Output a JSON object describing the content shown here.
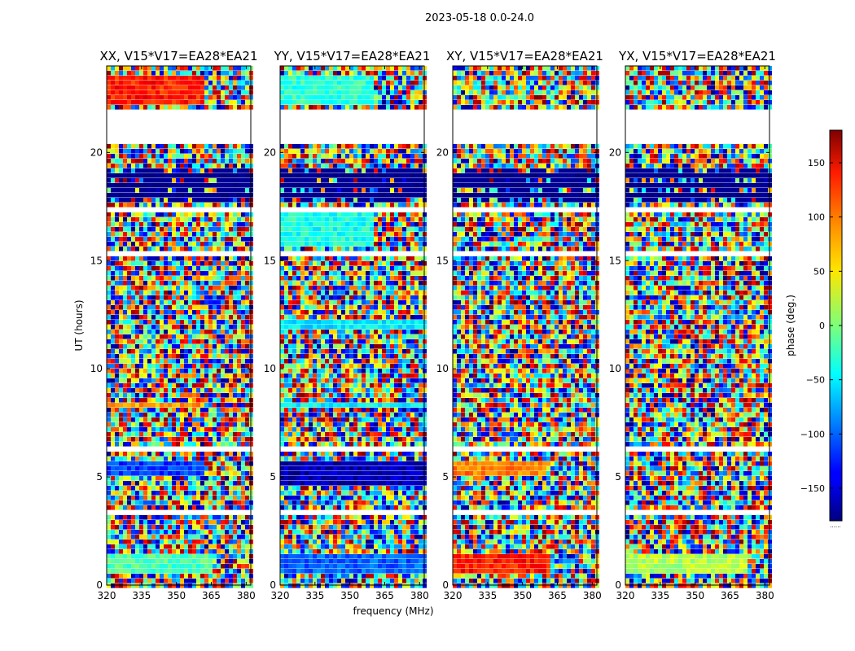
{
  "figure": {
    "suptitle": "2023-05-18 0.0-24.0",
    "xlabel": "frequency (MHz)",
    "ylabel": "UT (hours)"
  },
  "chart_data": {
    "type": "heatmap",
    "x_range": [
      320,
      382
    ],
    "y_range": [
      0,
      24
    ],
    "x_ticks": [
      320,
      335,
      350,
      365,
      380
    ],
    "y_ticks": [
      0,
      5,
      10,
      15,
      20
    ],
    "panels": [
      {
        "title": "XX, V15*V17=EA28*EA21",
        "pol": "XX"
      },
      {
        "title": "YY, V15*V17=EA28*EA21",
        "pol": "YY"
      },
      {
        "title": "XY, V15*V17=EA28*EA21",
        "pol": "XY"
      },
      {
        "title": "YX, V15*V17=EA28*EA21",
        "pol": "YX"
      }
    ],
    "blank_hours": [
      [
        0.45,
        0.5
      ],
      [
        1.6,
        1.7
      ],
      [
        2.0,
        2.05
      ],
      [
        3.3,
        3.35
      ],
      [
        4.5,
        4.6
      ],
      [
        6.2,
        6.3
      ],
      [
        8.0,
        8.05
      ],
      [
        10.2,
        10.3
      ],
      [
        15.1,
        15.5
      ],
      [
        17.3,
        17.4
      ],
      [
        20.5,
        21.9
      ],
      [
        22.6,
        22.7
      ]
    ],
    "dark_band_hours": [
      17.6,
      19.3
    ],
    "colorbar": {
      "label": "phase (deg.)",
      "range": [
        -180,
        180
      ],
      "ticks": [
        -150,
        -100,
        -50,
        0,
        50,
        100,
        150
      ],
      "colormap": "jet",
      "below_label": "......"
    }
  }
}
